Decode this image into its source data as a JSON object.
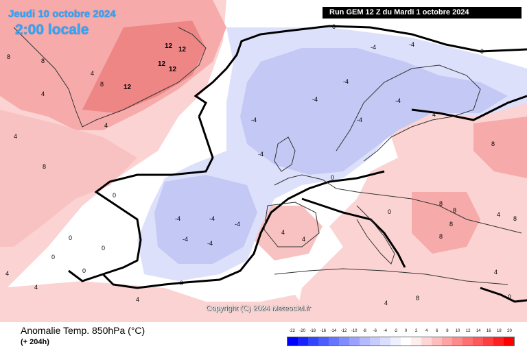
{
  "header": {
    "date": "Jeudi 10 octobre 2024",
    "local_time": "2:00 locale",
    "run": "Run GEM 12 Z du Mardi 1 octobre 2024"
  },
  "footer": {
    "variable": "Anomalie Temp. 850hPa (°C)",
    "lead": "(+ 204h)",
    "copyright": "Copyright (C) 2024 Meteociel.fr"
  },
  "legend": {
    "labels": [
      "-22",
      "-20",
      "-18",
      "-16",
      "-14",
      "-12",
      "-10",
      "-8",
      "-6",
      "-4",
      "-2",
      "0",
      "2",
      "4",
      "6",
      "8",
      "10",
      "12",
      "14",
      "16",
      "18",
      "20"
    ],
    "colors": [
      "#0000ff",
      "#1a22ff",
      "#3344ff",
      "#4d5cff",
      "#6675ff",
      "#7f8cff",
      "#99a3ff",
      "#b3baff",
      "#c7ccff",
      "#dadeff",
      "#eef0ff",
      "#ffffff",
      "#ffeeee",
      "#ffd5d5",
      "#ffbcbc",
      "#ffa3a3",
      "#ff8a8a",
      "#ff7070",
      "#ff5858",
      "#ff3f3f",
      "#ff2020",
      "#ff0000"
    ]
  },
  "contour_labels": [
    "0",
    "4",
    "8",
    "12",
    "-4"
  ],
  "colors": {
    "warm_light": "#fbd3d3",
    "warm_mid": "#f6aaaa",
    "warm_strong": "#ee8686",
    "cold_light": "#dde0fb",
    "cold_mid": "#c3c8f5",
    "neutral": "#ffffff",
    "title_blue": "#2aa8ff"
  }
}
